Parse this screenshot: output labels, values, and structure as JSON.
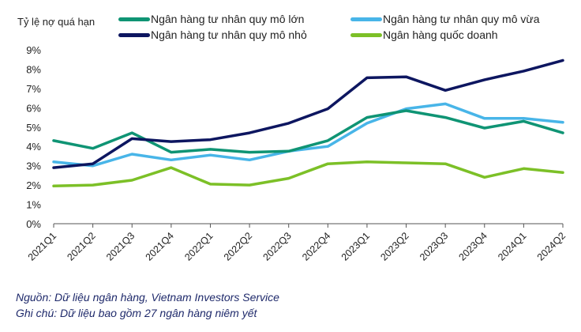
{
  "chart_data": {
    "type": "line",
    "title": "",
    "ylabel": "Tỷ lệ nợ quá hạn",
    "xlabel": "",
    "ylim": [
      0,
      9
    ],
    "yticks": [
      "0%",
      "1%",
      "2%",
      "3%",
      "4%",
      "5%",
      "6%",
      "7%",
      "8%",
      "9%"
    ],
    "categories": [
      "2021Q1",
      "2021Q2",
      "2021Q3",
      "2021Q4",
      "2022Q1",
      "2022Q2",
      "2022Q3",
      "2022Q4",
      "2023Q1",
      "2023Q2",
      "2023Q3",
      "2023Q4",
      "2024Q1",
      "2024Q2"
    ],
    "grid": false,
    "legend_position": "top",
    "series": [
      {
        "name": "Ngân hàng tư nhân quy mô lớn",
        "color": "#0f9474",
        "values": [
          4.3,
          3.9,
          4.7,
          3.7,
          3.85,
          3.7,
          3.75,
          4.3,
          5.5,
          5.85,
          5.5,
          4.95,
          5.3,
          4.7
        ]
      },
      {
        "name": "Ngân hàng tư nhân quy mô vừa",
        "color": "#48b5e8",
        "values": [
          3.2,
          3.0,
          3.6,
          3.3,
          3.55,
          3.3,
          3.75,
          4.0,
          5.2,
          5.95,
          6.2,
          5.45,
          5.45,
          5.25
        ]
      },
      {
        "name": "Ngân hàng tư nhân quy mô nhỏ",
        "color": "#0d1660",
        "values": [
          2.9,
          3.1,
          4.4,
          4.25,
          4.35,
          4.7,
          5.2,
          5.95,
          7.55,
          7.6,
          6.9,
          7.45,
          7.9,
          8.45
        ]
      },
      {
        "name": "Ngân hàng quốc doanh",
        "color": "#7cc027",
        "values": [
          1.95,
          2.0,
          2.25,
          2.9,
          2.05,
          2.0,
          2.35,
          3.1,
          3.2,
          3.15,
          3.1,
          2.4,
          2.85,
          2.65
        ]
      }
    ]
  },
  "notes": {
    "source": "Nguồn: Dữ liệu ngân hàng, Vietnam Investors Service",
    "remark": "Ghi chú: Dữ liệu bao gồm 27 ngân hàng niêm yết"
  }
}
